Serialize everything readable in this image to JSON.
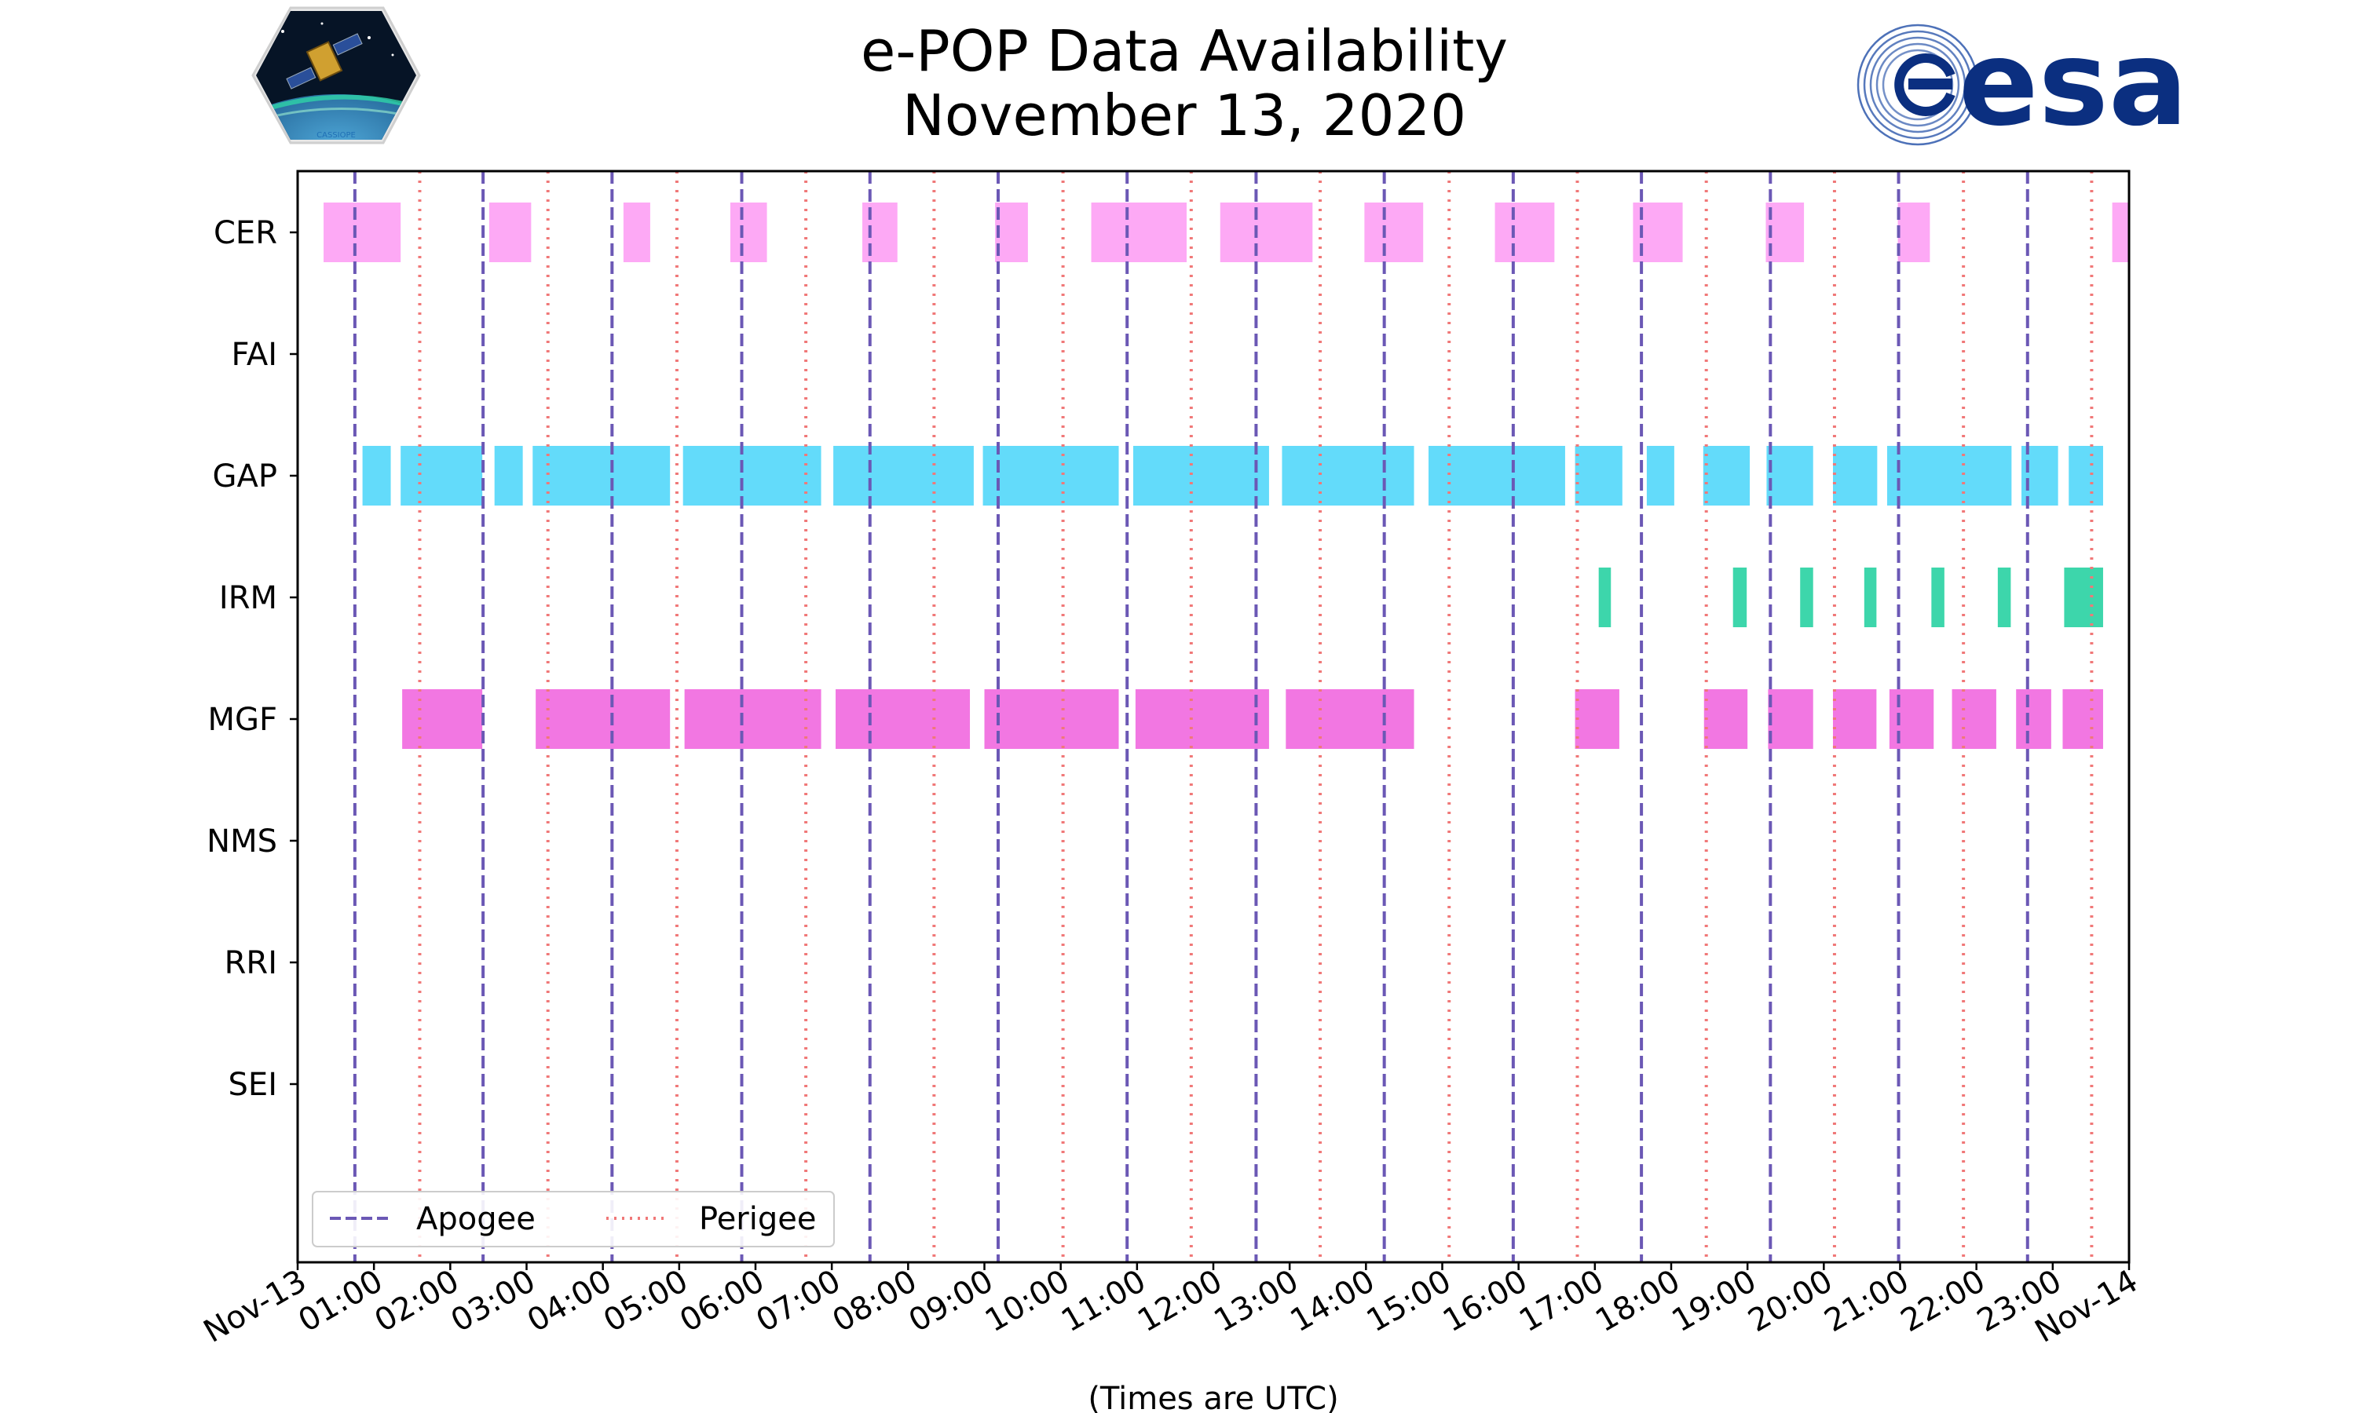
{
  "chart_data": {
    "type": "timeline",
    "title_line1": "e-POP Data Availability",
    "title_line2": "November 13, 2020",
    "xlabel": "(Times are UTC)",
    "x_range_hours": [
      0,
      24
    ],
    "x_ticks": [
      {
        "h": 0,
        "label": "Nov-13"
      },
      {
        "h": 1,
        "label": "01:00"
      },
      {
        "h": 2,
        "label": "02:00"
      },
      {
        "h": 3,
        "label": "03:00"
      },
      {
        "h": 4,
        "label": "04:00"
      },
      {
        "h": 5,
        "label": "05:00"
      },
      {
        "h": 6,
        "label": "06:00"
      },
      {
        "h": 7,
        "label": "07:00"
      },
      {
        "h": 8,
        "label": "08:00"
      },
      {
        "h": 9,
        "label": "09:00"
      },
      {
        "h": 10,
        "label": "10:00"
      },
      {
        "h": 11,
        "label": "11:00"
      },
      {
        "h": 12,
        "label": "12:00"
      },
      {
        "h": 13,
        "label": "13:00"
      },
      {
        "h": 14,
        "label": "14:00"
      },
      {
        "h": 15,
        "label": "15:00"
      },
      {
        "h": 16,
        "label": "16:00"
      },
      {
        "h": 17,
        "label": "17:00"
      },
      {
        "h": 18,
        "label": "18:00"
      },
      {
        "h": 19,
        "label": "19:00"
      },
      {
        "h": 20,
        "label": "20:00"
      },
      {
        "h": 21,
        "label": "21:00"
      },
      {
        "h": 22,
        "label": "22:00"
      },
      {
        "h": 23,
        "label": "23:00"
      },
      {
        "h": 24,
        "label": "Nov-14"
      }
    ],
    "instruments": [
      {
        "name": "CER",
        "color": "#fda9f5",
        "intervals": [
          [
            0.34,
            1.35
          ],
          [
            2.51,
            3.06
          ],
          [
            4.27,
            4.62
          ],
          [
            5.67,
            6.15
          ],
          [
            7.4,
            7.86
          ],
          [
            9.14,
            9.57
          ],
          [
            10.4,
            11.65
          ],
          [
            12.09,
            13.3
          ],
          [
            13.98,
            14.75
          ],
          [
            15.69,
            16.47
          ],
          [
            17.5,
            18.15
          ],
          [
            19.24,
            19.74
          ],
          [
            20.97,
            21.39
          ],
          [
            23.78,
            24.0
          ]
        ]
      },
      {
        "name": "FAI",
        "color": "#fda9f5",
        "intervals": []
      },
      {
        "name": "GAP",
        "color": "#63dbfa",
        "intervals": [
          [
            0.85,
            1.22
          ],
          [
            1.35,
            2.42
          ],
          [
            2.58,
            2.95
          ],
          [
            3.08,
            4.88
          ],
          [
            5.05,
            6.86
          ],
          [
            7.02,
            8.86
          ],
          [
            8.98,
            10.76
          ],
          [
            10.95,
            12.73
          ],
          [
            12.9,
            14.63
          ],
          [
            14.82,
            16.61
          ],
          [
            16.74,
            17.36
          ],
          [
            17.68,
            18.04
          ],
          [
            18.42,
            19.03
          ],
          [
            19.25,
            19.86
          ],
          [
            20.12,
            20.7
          ],
          [
            20.83,
            22.46
          ],
          [
            22.59,
            23.07
          ],
          [
            23.21,
            23.66
          ]
        ]
      },
      {
        "name": "IRM",
        "color": "#3dd6ab",
        "intervals": [
          [
            17.05,
            17.21
          ],
          [
            18.81,
            18.99
          ],
          [
            19.69,
            19.86
          ],
          [
            20.53,
            20.69
          ],
          [
            21.41,
            21.58
          ],
          [
            22.28,
            22.45
          ],
          [
            23.15,
            23.66
          ]
        ]
      },
      {
        "name": "MGF",
        "color": "#f277e2",
        "intervals": [
          [
            1.37,
            2.42
          ],
          [
            3.12,
            4.88
          ],
          [
            5.07,
            6.86
          ],
          [
            7.05,
            8.81
          ],
          [
            9.0,
            10.76
          ],
          [
            10.98,
            12.73
          ],
          [
            12.95,
            14.63
          ],
          [
            16.74,
            17.32
          ],
          [
            18.43,
            19.0
          ],
          [
            19.27,
            19.86
          ],
          [
            20.12,
            20.69
          ],
          [
            20.86,
            21.44
          ],
          [
            21.68,
            22.26
          ],
          [
            22.52,
            22.98
          ],
          [
            23.13,
            23.66
          ]
        ]
      },
      {
        "name": "NMS",
        "color": "#f277e2",
        "intervals": []
      },
      {
        "name": "RRI",
        "color": "#f277e2",
        "intervals": []
      },
      {
        "name": "SEI",
        "color": "#f277e2",
        "intervals": []
      }
    ],
    "apogee_hours": [
      0.75,
      2.43,
      4.12,
      5.82,
      7.5,
      9.18,
      10.87,
      12.56,
      14.24,
      15.93,
      17.61,
      19.3,
      20.98,
      22.67
    ],
    "perigee_hours": [
      1.6,
      3.28,
      4.97,
      6.66,
      8.34,
      10.03,
      11.71,
      13.4,
      15.09,
      16.77,
      18.46,
      20.14,
      21.83,
      23.51
    ],
    "legend": [
      {
        "label": "Apogee",
        "style": "dashed",
        "color": "#6b58b5"
      },
      {
        "label": "Perigee",
        "style": "dotted",
        "color": "#f07878"
      }
    ],
    "legend_position": "lower-left",
    "colors": {
      "apogee": "#6b58b5",
      "perigee": "#f07878"
    }
  },
  "logos": {
    "cassiope_text": "CASSIOPE",
    "esa_text": "esa"
  }
}
